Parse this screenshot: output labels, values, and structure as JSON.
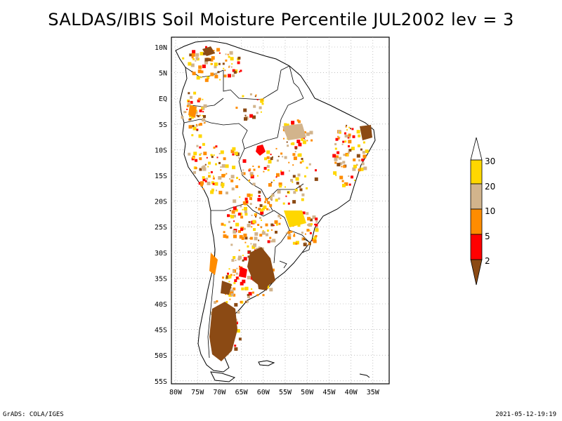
{
  "title": "SALDAS/IBIS Soil Moisture Percentile JUL2002 lev = 3",
  "lon_labels": [
    "80W",
    "75W",
    "70W",
    "65W",
    "60W",
    "55W",
    "50W",
    "45W",
    "40W",
    "35W"
  ],
  "lat_labels": [
    "10N",
    "5N",
    "EQ",
    "5S",
    "10S",
    "15S",
    "20S",
    "25S",
    "30S",
    "35S",
    "40S",
    "45S",
    "50S",
    "55S"
  ],
  "legend": {
    "labels": [
      "2",
      "5",
      "10",
      "20",
      "30"
    ],
    "colors": {
      "below_2": "#8B4A14",
      "2_5": "#FF0000",
      "5_10": "#FF8C00",
      "10_20": "#D2B48C",
      "20_30": "#FFD700",
      "above_30": "#FFFFFF"
    }
  },
  "footer": {
    "left": "GrADS: COLA/IGES",
    "right": "2021-05-12-19:19"
  }
}
